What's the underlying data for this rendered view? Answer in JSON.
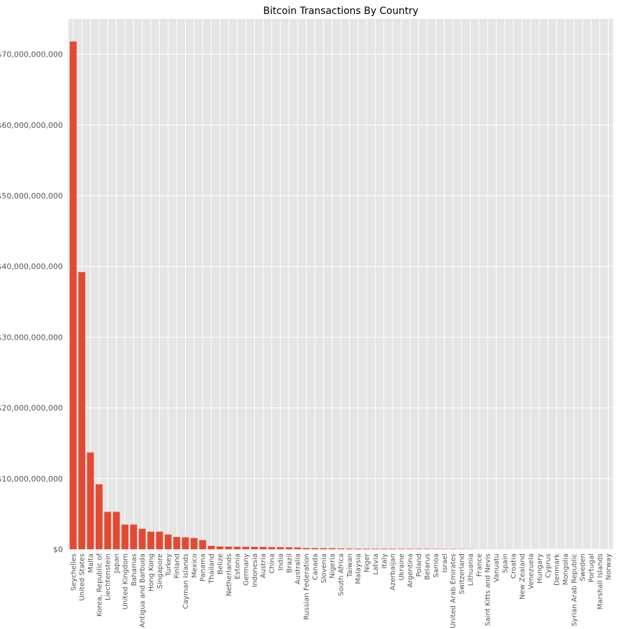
{
  "chart_data": {
    "type": "bar",
    "title": "Bitcoin Transactions By Country",
    "xlabel": "",
    "ylabel": "",
    "ylim": [
      0,
      75000000000
    ],
    "yticks": [
      0,
      10000000000,
      20000000000,
      30000000000,
      40000000000,
      50000000000,
      60000000000,
      70000000000
    ],
    "ytick_labels": [
      "$0",
      "$10,000,000,000",
      "$20,000,000,000",
      "$30,000,000,000",
      "$40,000,000,000",
      "$50,000,000,000",
      "$60,000,000,000",
      "$70,000,000,000"
    ],
    "grid": true,
    "bar_color": "#e24a33",
    "background_color": "#e5e5e5",
    "grid_color": "#ffffff",
    "categories": [
      "Seychelles",
      "United States",
      "Malta",
      "Korea, Republic of",
      "Liechtenstein",
      "Japan",
      "United Kingdom",
      "Bahamas",
      "Antigua and Barbuda",
      "Hong Kong",
      "Singapore",
      "Turkey",
      "Finland",
      "Cayman Islands",
      "Mexico",
      "Panama",
      "Thailand",
      "Belize",
      "Netherlands",
      "Estonia",
      "Germany",
      "Indonesia",
      "Austria",
      "China",
      "India",
      "Brazil",
      "Australia",
      "Russian Federation",
      "Canada",
      "Slovenia",
      "Nigeria",
      "South Africa",
      "Taiwan",
      "Malaysia",
      "Niger",
      "Latvia",
      "Italy",
      "Azerbaijan",
      "Ukraine",
      "Argentina",
      "Poland",
      "Belarus",
      "Samoa",
      "Israel",
      "United Arab Emirates",
      "Switzerland",
      "Lithuania",
      "France",
      "Saint Kitts and Nevis",
      "Vanuatu",
      "Spain",
      "Croatia",
      "New Zealand",
      "Venezuela",
      "Hungary",
      "Cyprus",
      "Denmark",
      "Mongolia",
      "Syrian Arab Republic",
      "Sweden",
      "Portugal",
      "Marshall Islands",
      "Norway"
    ],
    "values": [
      71800000000,
      39200000000,
      13700000000,
      9200000000,
      5300000000,
      5300000000,
      3500000000,
      3500000000,
      2900000000,
      2500000000,
      2500000000,
      2100000000,
      1750000000,
      1700000000,
      1600000000,
      1300000000,
      500000000,
      400000000,
      380000000,
      370000000,
      360000000,
      350000000,
      340000000,
      310000000,
      300000000,
      280000000,
      260000000,
      180000000,
      170000000,
      160000000,
      150000000,
      120000000,
      110000000,
      100000000,
      95000000,
      90000000,
      85000000,
      80000000,
      75000000,
      70000000,
      65000000,
      60000000,
      55000000,
      50000000,
      45000000,
      40000000,
      35000000,
      10000000,
      8000000,
      7000000,
      6000000,
      5000000,
      4500000,
      4000000,
      3500000,
      3000000,
      2500000,
      2000000,
      1500000,
      1200000,
      1000000,
      800000,
      500000
    ]
  }
}
